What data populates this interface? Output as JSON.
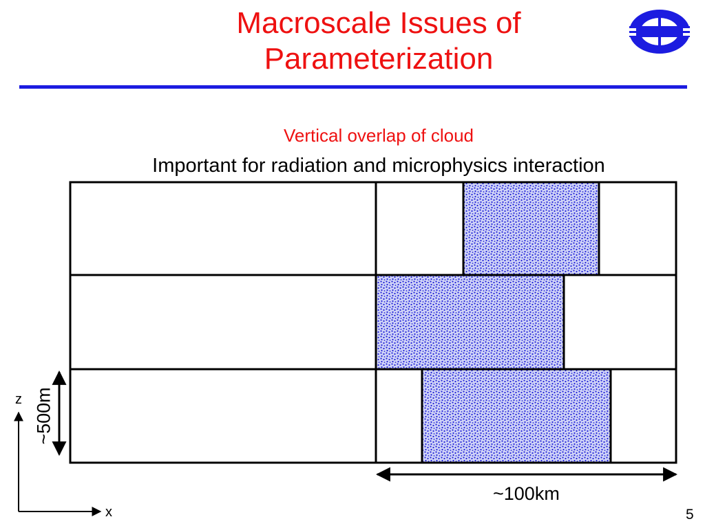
{
  "slide": {
    "title_line1": "Macroscale Issues of",
    "title_line2": "Parameterization",
    "subtitle": "Vertical overlap of cloud",
    "caption": "Important for radiation and microphysics interaction",
    "page_number": "5"
  },
  "axes": {
    "z_label": "z",
    "x_label": "x"
  },
  "dimensions": {
    "vertical": "~500m",
    "horizontal": "~100km"
  },
  "logo": {
    "icon": "ecmwf-logo-icon",
    "color": "#1c1ce0"
  },
  "colors": {
    "title": "#ee1111",
    "rule": "#1c1ce0",
    "cloud_fill": "#cfd3f7",
    "cloud_dots": "#2020d8"
  }
}
